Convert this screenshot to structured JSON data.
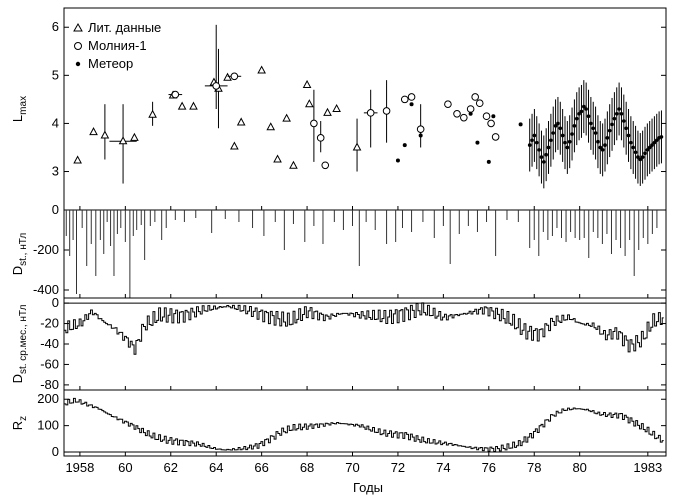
{
  "chart_data": {
    "type": "multi-panel time series",
    "x_label": "Годы",
    "x_range": [
      1957.3,
      1983.8
    ],
    "x_ticks": [
      {
        "v": 1958,
        "t": "1958"
      },
      {
        "v": 1960,
        "t": "60"
      },
      {
        "v": 1962,
        "t": "62"
      },
      {
        "v": 1964,
        "t": "64"
      },
      {
        "v": 1966,
        "t": "66"
      },
      {
        "v": 1968,
        "t": "68"
      },
      {
        "v": 1970,
        "t": "70"
      },
      {
        "v": 1972,
        "t": "72"
      },
      {
        "v": 1974,
        "t": "74"
      },
      {
        "v": 1976,
        "t": "76"
      },
      {
        "v": 1978,
        "t": "78"
      },
      {
        "v": 1980,
        "t": "80"
      },
      {
        "v": 1983,
        "t": "1983"
      }
    ],
    "panels": [
      {
        "id": "lmax",
        "ylabel_main": "L",
        "ylabel_sub": "max",
        "ylim": [
          2.2,
          6.4
        ],
        "yticks": [
          3,
          4,
          5,
          6
        ],
        "legend": [
          {
            "marker": "triangle",
            "label": "Лит. данные"
          },
          {
            "marker": "circle",
            "label": "Молния-1"
          },
          {
            "marker": "dot",
            "label": "Метеор"
          }
        ],
        "lit_points": [
          {
            "x": 1957.9,
            "y": 3.23
          },
          {
            "x": 1958.6,
            "y": 3.82
          },
          {
            "x": 1959.1,
            "y": 3.75,
            "lo": 3.25,
            "hi": 4.4
          },
          {
            "x": 1959.9,
            "y": 3.63,
            "lo": 2.75,
            "hi": 4.4,
            "xerr": 0.6
          },
          {
            "x": 1960.4,
            "y": 3.7
          },
          {
            "x": 1961.2,
            "y": 4.18,
            "lo": 3.95,
            "hi": 4.45
          },
          {
            "x": 1962.1,
            "y": 4.58
          },
          {
            "x": 1962.5,
            "y": 4.35
          },
          {
            "x": 1963.0,
            "y": 4.35
          },
          {
            "x": 1963.9,
            "y": 4.85
          },
          {
            "x": 1964.1,
            "y": 4.72,
            "lo": 3.9,
            "hi": 5.55
          },
          {
            "x": 1964.5,
            "y": 4.95
          },
          {
            "x": 1964.8,
            "y": 3.52
          },
          {
            "x": 1965.1,
            "y": 4.02
          },
          {
            "x": 1966.0,
            "y": 5.1
          },
          {
            "x": 1966.4,
            "y": 3.92
          },
          {
            "x": 1966.7,
            "y": 3.25
          },
          {
            "x": 1967.1,
            "y": 4.1
          },
          {
            "x": 1967.4,
            "y": 3.12
          },
          {
            "x": 1968.0,
            "y": 4.8
          },
          {
            "x": 1968.1,
            "y": 4.4
          },
          {
            "x": 1968.9,
            "y": 4.22
          },
          {
            "x": 1969.3,
            "y": 4.3
          },
          {
            "x": 1970.2,
            "y": 3.5,
            "lo": 3.0,
            "hi": 4.1
          }
        ],
        "molniya_points": [
          {
            "x": 1962.2,
            "y": 4.6,
            "xerr": 0.3
          },
          {
            "x": 1964.0,
            "y": 4.78,
            "lo": 4.3,
            "hi": 6.05,
            "xerr": 0.5
          },
          {
            "x": 1964.8,
            "y": 4.98,
            "xerr": 0.3
          },
          {
            "x": 1968.3,
            "y": 4.0,
            "lo": 3.2,
            "hi": 4.7
          },
          {
            "x": 1968.6,
            "y": 3.7,
            "lo": 3.4,
            "hi": 4.05
          },
          {
            "x": 1968.8,
            "y": 3.13
          },
          {
            "x": 1970.8,
            "y": 4.22,
            "lo": 3.5,
            "hi": 4.7,
            "xerr": 0.3
          },
          {
            "x": 1971.5,
            "y": 4.26,
            "lo": 3.6,
            "hi": 4.9
          },
          {
            "x": 1972.3,
            "y": 4.5
          },
          {
            "x": 1972.6,
            "y": 4.55
          },
          {
            "x": 1973.0,
            "y": 3.88,
            "lo": 3.5,
            "hi": 4.4
          },
          {
            "x": 1974.2,
            "y": 4.4
          },
          {
            "x": 1974.6,
            "y": 4.2
          },
          {
            "x": 1974.9,
            "y": 4.12
          },
          {
            "x": 1975.2,
            "y": 4.3
          },
          {
            "x": 1975.4,
            "y": 4.55
          },
          {
            "x": 1975.6,
            "y": 4.42
          },
          {
            "x": 1975.9,
            "y": 4.15
          },
          {
            "x": 1976.1,
            "y": 4.0
          },
          {
            "x": 1976.3,
            "y": 3.72
          }
        ],
        "meteor_points": [
          {
            "x": 1972.0,
            "y": 3.23
          },
          {
            "x": 1972.3,
            "y": 3.55
          },
          {
            "x": 1972.6,
            "y": 4.4
          },
          {
            "x": 1973.0,
            "y": 3.75
          },
          {
            "x": 1975.2,
            "y": 4.2
          },
          {
            "x": 1975.5,
            "y": 3.6
          },
          {
            "x": 1976.0,
            "y": 3.2
          },
          {
            "x": 1976.2,
            "y": 4.15
          },
          {
            "x": 1977.4,
            "y": 3.98
          }
        ],
        "meteor_band": {
          "x_start": 1977.8,
          "x_end": 1983.6,
          "err": 0.55,
          "y": [
            3.55,
            3.65,
            3.75,
            3.6,
            3.45,
            3.3,
            3.2,
            3.35,
            3.5,
            3.65,
            3.8,
            3.95,
            4.0,
            3.9,
            3.75,
            3.6,
            3.5,
            3.62,
            3.78,
            3.95,
            4.1,
            4.2,
            4.25,
            4.35,
            4.3,
            4.15,
            4.0,
            3.9,
            3.8,
            3.62,
            3.5,
            3.45,
            3.55,
            3.7,
            3.85,
            3.98,
            4.1,
            4.2,
            4.3,
            4.2,
            4.05,
            3.9,
            3.75,
            3.6,
            3.5,
            3.4,
            3.3,
            3.25,
            3.3,
            3.38,
            3.45,
            3.5,
            3.55,
            3.6,
            3.65,
            3.7,
            3.72
          ]
        }
      },
      {
        "id": "dst",
        "ylabel_main": "D",
        "ylabel_sub": "st., нТл",
        "ylim": [
          -440,
          0
        ],
        "yticks": [
          0,
          -200,
          -400
        ],
        "spikes": [
          {
            "x": 1957.4,
            "v": -130
          },
          {
            "x": 1957.55,
            "v": -230
          },
          {
            "x": 1957.7,
            "v": -150
          },
          {
            "x": 1957.85,
            "v": -420
          },
          {
            "x": 1958.1,
            "v": -90
          },
          {
            "x": 1958.3,
            "v": -280
          },
          {
            "x": 1958.5,
            "v": -170
          },
          {
            "x": 1958.7,
            "v": -330
          },
          {
            "x": 1958.9,
            "v": -150
          },
          {
            "x": 1959.05,
            "v": -220
          },
          {
            "x": 1959.2,
            "v": -60
          },
          {
            "x": 1959.35,
            "v": -180
          },
          {
            "x": 1959.5,
            "v": -330
          },
          {
            "x": 1959.65,
            "v": -120
          },
          {
            "x": 1959.8,
            "v": -90
          },
          {
            "x": 1960.0,
            "v": -160
          },
          {
            "x": 1960.2,
            "v": -440
          },
          {
            "x": 1960.35,
            "v": -130
          },
          {
            "x": 1960.5,
            "v": -100
          },
          {
            "x": 1960.7,
            "v": -75
          },
          {
            "x": 1960.85,
            "v": -250
          },
          {
            "x": 1961.1,
            "v": -80
          },
          {
            "x": 1961.3,
            "v": -60
          },
          {
            "x": 1961.6,
            "v": -150
          },
          {
            "x": 1961.8,
            "v": -90
          },
          {
            "x": 1962.2,
            "v": -50
          },
          {
            "x": 1962.6,
            "v": -60
          },
          {
            "x": 1963.1,
            "v": -40
          },
          {
            "x": 1963.8,
            "v": -115
          },
          {
            "x": 1964.4,
            "v": -45
          },
          {
            "x": 1965.0,
            "v": -60
          },
          {
            "x": 1965.6,
            "v": -90
          },
          {
            "x": 1966.1,
            "v": -130
          },
          {
            "x": 1966.6,
            "v": -60
          },
          {
            "x": 1967.0,
            "v": -200
          },
          {
            "x": 1967.4,
            "v": -70
          },
          {
            "x": 1967.9,
            "v": -160
          },
          {
            "x": 1968.3,
            "v": -80
          },
          {
            "x": 1968.7,
            "v": -170
          },
          {
            "x": 1969.2,
            "v": -60
          },
          {
            "x": 1969.6,
            "v": -100
          },
          {
            "x": 1970.0,
            "v": -80
          },
          {
            "x": 1970.3,
            "v": -280
          },
          {
            "x": 1970.6,
            "v": -60
          },
          {
            "x": 1971.0,
            "v": -100
          },
          {
            "x": 1971.5,
            "v": -170
          },
          {
            "x": 1971.9,
            "v": -160
          },
          {
            "x": 1972.2,
            "v": -90
          },
          {
            "x": 1972.6,
            "v": -110
          },
          {
            "x": 1973.1,
            "v": -60
          },
          {
            "x": 1973.6,
            "v": -140
          },
          {
            "x": 1974.0,
            "v": -80
          },
          {
            "x": 1974.3,
            "v": -270
          },
          {
            "x": 1974.7,
            "v": -120
          },
          {
            "x": 1975.1,
            "v": -80
          },
          {
            "x": 1975.5,
            "v": -110
          },
          {
            "x": 1975.9,
            "v": -60
          },
          {
            "x": 1976.3,
            "v": -230
          },
          {
            "x": 1976.8,
            "v": -50
          },
          {
            "x": 1977.3,
            "v": -60
          },
          {
            "x": 1977.8,
            "v": -190
          },
          {
            "x": 1978.0,
            "v": -150
          },
          {
            "x": 1978.2,
            "v": -230
          },
          {
            "x": 1978.4,
            "v": -110
          },
          {
            "x": 1978.6,
            "v": -150
          },
          {
            "x": 1978.8,
            "v": -130
          },
          {
            "x": 1979.0,
            "v": -90
          },
          {
            "x": 1979.2,
            "v": -140
          },
          {
            "x": 1979.4,
            "v": -160
          },
          {
            "x": 1979.6,
            "v": -110
          },
          {
            "x": 1979.8,
            "v": -140
          },
          {
            "x": 1980.0,
            "v": -150
          },
          {
            "x": 1980.2,
            "v": -140
          },
          {
            "x": 1980.4,
            "v": -240
          },
          {
            "x": 1980.6,
            "v": -110
          },
          {
            "x": 1980.8,
            "v": -140
          },
          {
            "x": 1981.0,
            "v": -170
          },
          {
            "x": 1981.2,
            "v": -120
          },
          {
            "x": 1981.4,
            "v": -220
          },
          {
            "x": 1981.6,
            "v": -150
          },
          {
            "x": 1981.8,
            "v": -190
          },
          {
            "x": 1982.0,
            "v": -230
          },
          {
            "x": 1982.2,
            "v": -150
          },
          {
            "x": 1982.4,
            "v": -330
          },
          {
            "x": 1982.6,
            "v": -200
          },
          {
            "x": 1982.8,
            "v": -140
          },
          {
            "x": 1983.0,
            "v": -170
          },
          {
            "x": 1983.2,
            "v": -120
          },
          {
            "x": 1983.4,
            "v": -90
          }
        ]
      },
      {
        "id": "dstavg",
        "ylabel_main": "D",
        "ylabel_sub": "st. ср.мес., нТл",
        "ylim": [
          -85,
          5
        ],
        "yticks": [
          0,
          -20,
          -40,
          -60,
          -80
        ],
        "anchors": [
          [
            1957.3,
            -25
          ],
          [
            1958.0,
            -20
          ],
          [
            1958.5,
            -8
          ],
          [
            1959.0,
            -18
          ],
          [
            1959.5,
            -25
          ],
          [
            1960.0,
            -35
          ],
          [
            1960.4,
            -45
          ],
          [
            1960.8,
            -22
          ],
          [
            1961.5,
            -12
          ],
          [
            1962.5,
            -12
          ],
          [
            1963.5,
            -6
          ],
          [
            1964.5,
            -3
          ],
          [
            1965.5,
            -8
          ],
          [
            1966.5,
            -14
          ],
          [
            1967.2,
            -18
          ],
          [
            1968.0,
            -8
          ],
          [
            1968.8,
            -14
          ],
          [
            1969.5,
            -10
          ],
          [
            1970.5,
            -12
          ],
          [
            1971.5,
            -14
          ],
          [
            1972.2,
            -10
          ],
          [
            1973.0,
            -6
          ],
          [
            1974.0,
            -14
          ],
          [
            1975.0,
            -10
          ],
          [
            1975.8,
            -6
          ],
          [
            1976.5,
            -12
          ],
          [
            1977.0,
            -18
          ],
          [
            1977.6,
            -28
          ],
          [
            1978.2,
            -30
          ],
          [
            1978.8,
            -18
          ],
          [
            1979.5,
            -14
          ],
          [
            1980.0,
            -20
          ],
          [
            1980.6,
            -22
          ],
          [
            1981.1,
            -32
          ],
          [
            1981.6,
            -28
          ],
          [
            1982.2,
            -42
          ],
          [
            1982.7,
            -36
          ],
          [
            1983.2,
            -18
          ],
          [
            1983.7,
            -14
          ]
        ]
      },
      {
        "id": "rz",
        "ylabel_main": "R",
        "ylabel_sub": "z",
        "ylim": [
          -15,
          235
        ],
        "yticks": [
          200,
          100,
          0
        ],
        "anchors": [
          [
            1957.3,
            185
          ],
          [
            1957.8,
            195
          ],
          [
            1958.3,
            180
          ],
          [
            1958.8,
            165
          ],
          [
            1959.3,
            140
          ],
          [
            1959.8,
            120
          ],
          [
            1960.3,
            100
          ],
          [
            1960.8,
            75
          ],
          [
            1961.3,
            55
          ],
          [
            1961.8,
            45
          ],
          [
            1962.3,
            40
          ],
          [
            1962.8,
            35
          ],
          [
            1963.3,
            28
          ],
          [
            1963.8,
            15
          ],
          [
            1964.3,
            8
          ],
          [
            1964.8,
            10
          ],
          [
            1965.3,
            15
          ],
          [
            1965.8,
            25
          ],
          [
            1966.3,
            48
          ],
          [
            1966.8,
            75
          ],
          [
            1967.3,
            90
          ],
          [
            1967.8,
            95
          ],
          [
            1968.3,
            100
          ],
          [
            1968.8,
            105
          ],
          [
            1969.3,
            110
          ],
          [
            1969.8,
            105
          ],
          [
            1970.3,
            100
          ],
          [
            1970.8,
            85
          ],
          [
            1971.3,
            72
          ],
          [
            1971.8,
            68
          ],
          [
            1972.3,
            65
          ],
          [
            1972.8,
            50
          ],
          [
            1973.3,
            40
          ],
          [
            1973.8,
            35
          ],
          [
            1974.3,
            30
          ],
          [
            1974.8,
            22
          ],
          [
            1975.3,
            15
          ],
          [
            1975.8,
            12
          ],
          [
            1976.3,
            12
          ],
          [
            1976.8,
            18
          ],
          [
            1977.3,
            30
          ],
          [
            1977.8,
            60
          ],
          [
            1978.3,
            100
          ],
          [
            1978.8,
            140
          ],
          [
            1979.3,
            160
          ],
          [
            1979.8,
            165
          ],
          [
            1980.3,
            160
          ],
          [
            1980.8,
            145
          ],
          [
            1981.3,
            140
          ],
          [
            1981.8,
            140
          ],
          [
            1982.3,
            115
          ],
          [
            1982.8,
            90
          ],
          [
            1983.3,
            60
          ],
          [
            1983.7,
            40
          ]
        ]
      }
    ]
  }
}
